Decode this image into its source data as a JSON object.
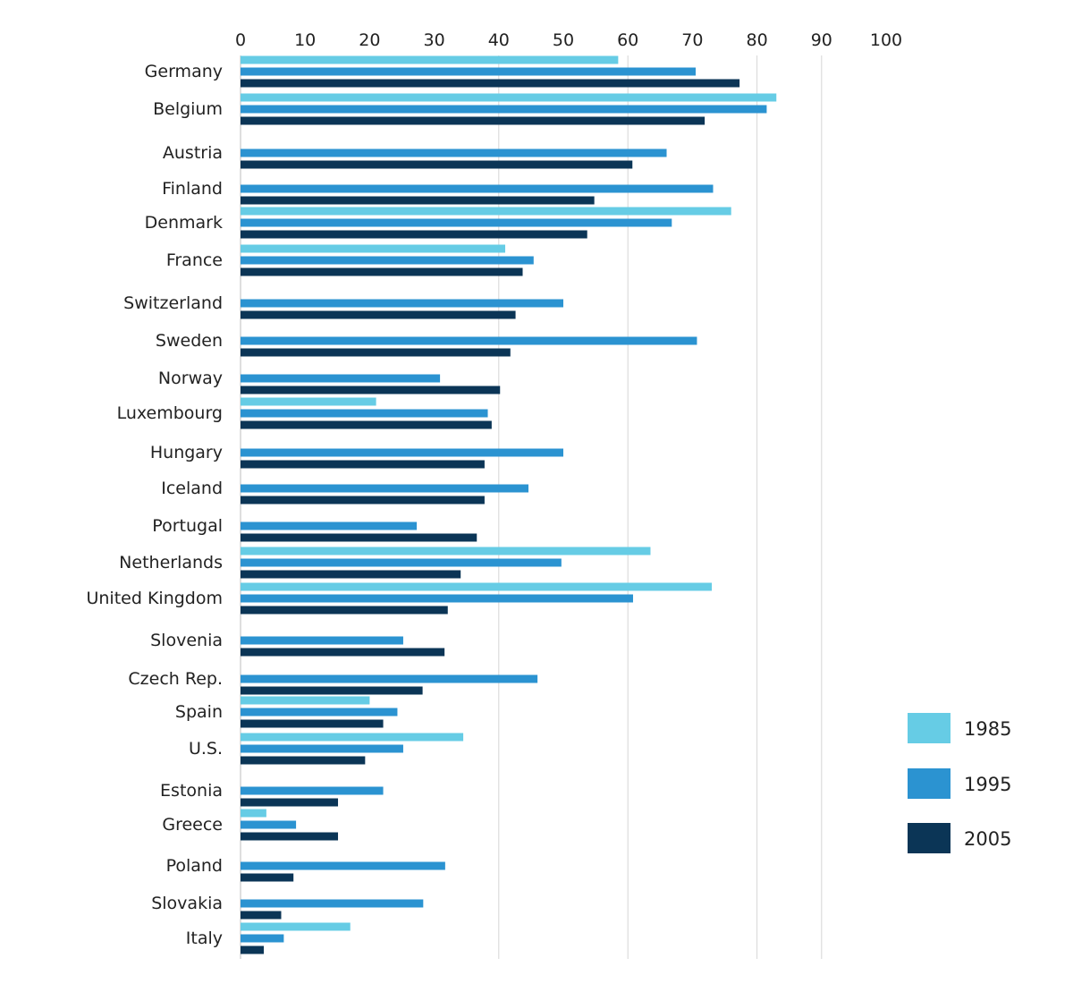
{
  "chart_data": {
    "type": "bar",
    "orientation": "horizontal",
    "title": "",
    "xlabel": "",
    "ylabel": "",
    "xlim": [
      0,
      100
    ],
    "x_ticks": [
      "0",
      "10",
      "20",
      "30",
      "40",
      "50",
      "60",
      "70",
      "80",
      "90",
      "100"
    ],
    "grid": "vertical gridlines at 40, 60, 80, 90",
    "legend_position": "bottom-right",
    "categories": [
      "Germany",
      "Belgium",
      "Austria",
      "Finland",
      "Denmark",
      "France",
      "Switzerland",
      "Sweden",
      "Norway",
      "Luxembourg",
      "Hungary",
      "Iceland",
      "Portugal",
      "Netherlands",
      "United Kingdom",
      "Slovenia",
      "Czech Rep.",
      "Spain",
      "U.S.",
      "Estonia",
      "Greece",
      "Poland",
      "Slovakia",
      "Italy"
    ],
    "series": [
      {
        "name": "1985",
        "color": "#66cce5",
        "values": [
          58.5,
          83,
          null,
          null,
          76,
          41,
          null,
          null,
          null,
          21,
          null,
          null,
          null,
          63.5,
          73,
          null,
          null,
          20,
          34.5,
          null,
          4,
          null,
          null,
          17
        ]
      },
      {
        "name": "1995",
        "color": "#2b93d1",
        "values": [
          70.5,
          81.5,
          66,
          73.2,
          66.8,
          45.4,
          50,
          70.7,
          30.9,
          38.3,
          50,
          44.6,
          27.3,
          49.7,
          60.8,
          25.2,
          46,
          24.3,
          25.2,
          22.1,
          8.6,
          31.7,
          28.3,
          6.7
        ]
      },
      {
        "name": "2005",
        "color": "#0b3556",
        "values": [
          77.3,
          71.9,
          60.7,
          54.8,
          53.7,
          43.7,
          42.6,
          41.8,
          40.2,
          38.9,
          37.8,
          37.8,
          36.6,
          34.1,
          32.1,
          31.6,
          28.2,
          22.1,
          19.3,
          15.1,
          15.1,
          8.2,
          6.3,
          3.6
        ]
      }
    ]
  }
}
